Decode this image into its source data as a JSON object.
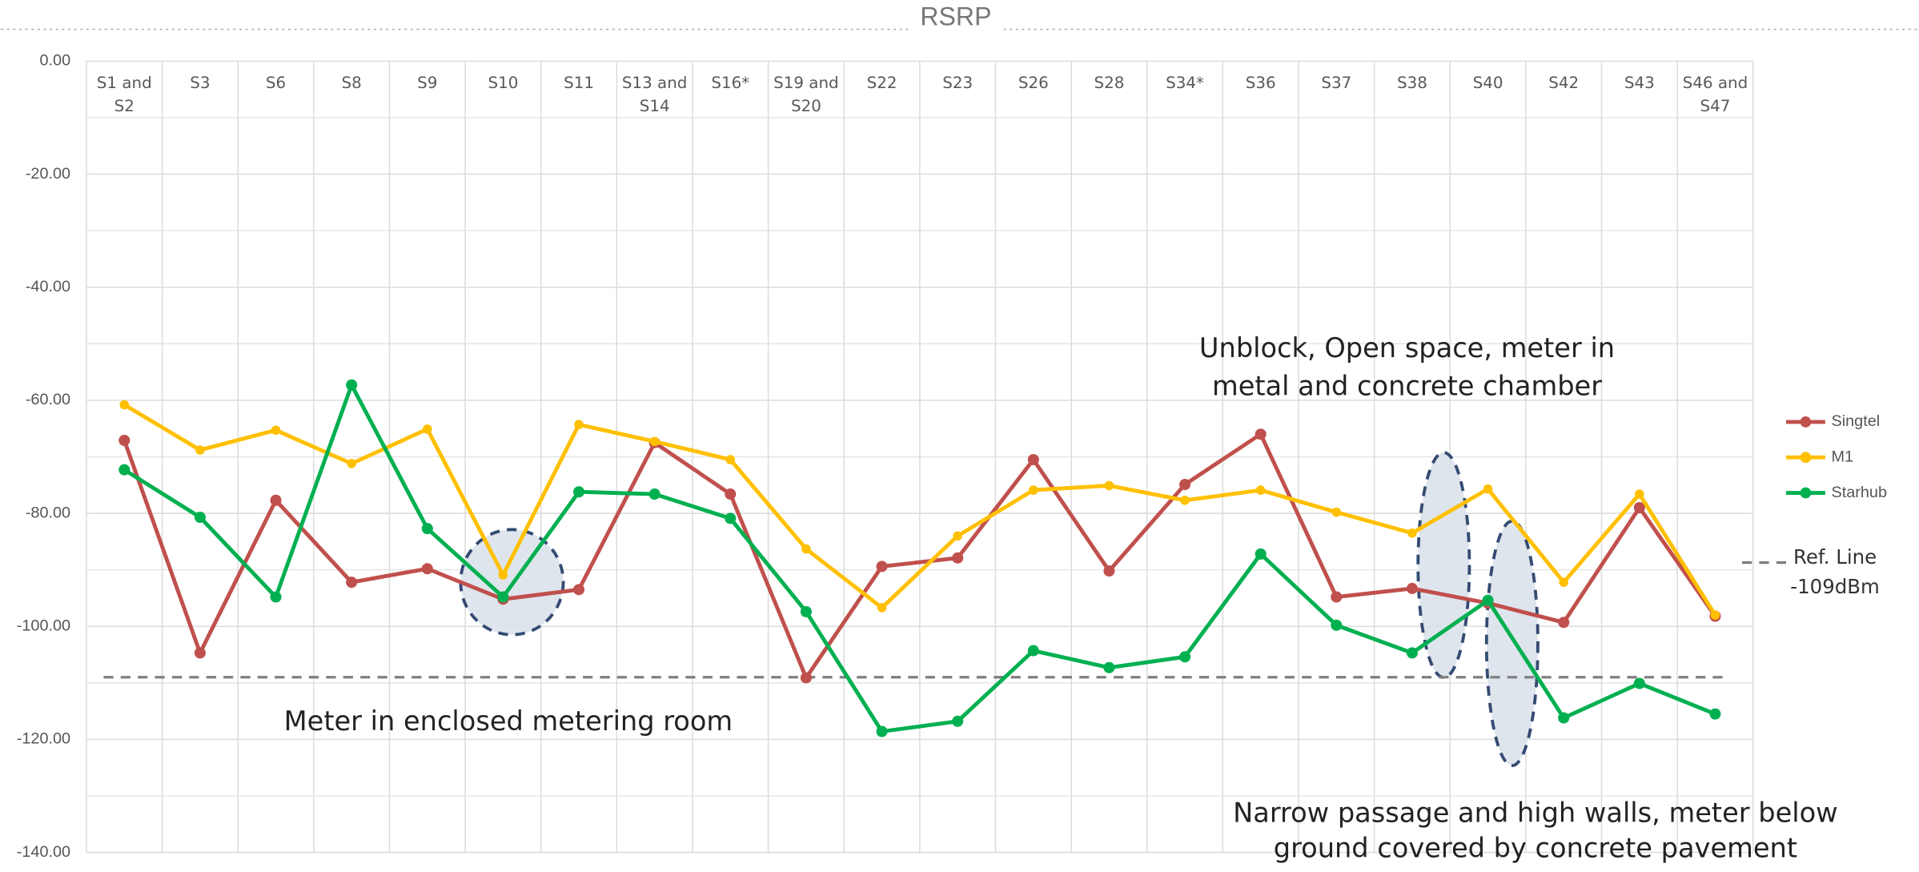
{
  "chart_data": {
    "type": "line",
    "title": "RSRP",
    "categories": [
      "S1 and S2",
      "S3",
      "S6",
      "S8",
      "S9",
      "S10",
      "S11",
      "S13 and S14",
      "S16*",
      "S19 and S20",
      "S22",
      "S23",
      "S26",
      "S28",
      "S34*",
      "S36",
      "S37",
      "S38",
      "S40",
      "S42",
      "S43",
      "S46 and S47"
    ],
    "series": [
      {
        "name": "Singtel",
        "color": "#c0504d",
        "values": [
          -67.1,
          -104.7,
          -77.7,
          -92.2,
          -89.8,
          -95.2,
          -93.5,
          -67.5,
          -76.6,
          -109.1,
          -89.4,
          -87.9,
          -70.5,
          -90.2,
          -74.9,
          -66.0,
          -94.8,
          -93.3,
          -95.9,
          -99.3,
          -79.0,
          -98.2
        ]
      },
      {
        "name": "M1",
        "color": "#ffc000",
        "values": [
          -60.8,
          -68.8,
          -65.3,
          -71.2,
          -65.1,
          -90.9,
          -64.3,
          -67.3,
          -70.5,
          -86.3,
          -96.7,
          -84.0,
          -75.9,
          -75.1,
          -77.7,
          -75.9,
          -79.8,
          -83.5,
          -75.7,
          -92.2,
          -76.6,
          -98.0
        ]
      },
      {
        "name": "Starhub",
        "color": "#00b050",
        "values": [
          -72.3,
          -80.7,
          -94.8,
          -57.3,
          -82.7,
          -94.8,
          -76.2,
          -76.6,
          -80.9,
          -97.4,
          -118.6,
          -116.8,
          -104.3,
          -107.3,
          -105.4,
          -87.2,
          -99.8,
          -104.7,
          -95.4,
          -116.2,
          -110.1,
          -115.5
        ]
      }
    ],
    "ylim": [
      -140,
      0
    ],
    "yticks": [
      {
        "value": 0,
        "label": "0.00"
      },
      {
        "value": -20,
        "label": "-20.00"
      },
      {
        "value": -40,
        "label": "-40.00"
      },
      {
        "value": -60,
        "label": "-60.00"
      },
      {
        "value": -80,
        "label": "-80.00"
      },
      {
        "value": -100,
        "label": "-100.00"
      },
      {
        "value": -120,
        "label": "-120.00"
      },
      {
        "value": -140,
        "label": "-140.00"
      }
    ],
    "minor_yticks": [
      -10,
      -30,
      -50,
      -70,
      -90,
      -110,
      -130
    ],
    "grid": true,
    "legend": "right",
    "ref_line": {
      "value": -109,
      "label": "Ref. Line -109dBm",
      "color": "#7f7f7f"
    },
    "annotations": [
      "Meter in enclosed metering room",
      "Unblock, Open space, meter in metal and concrete chamber",
      "Narrow passage and high walls, meter below ground covered by concrete pavement"
    ]
  }
}
